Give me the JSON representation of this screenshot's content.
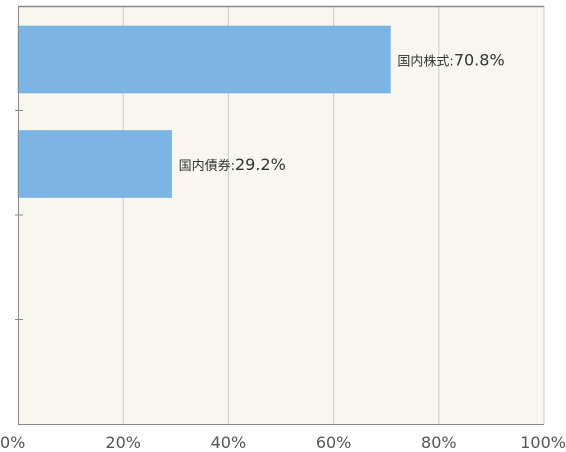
{
  "chart_data": {
    "type": "bar",
    "orientation": "horizontal",
    "categories": [
      "国内株式",
      "国内債券"
    ],
    "values": [
      70.8,
      29.2
    ],
    "label_separator": ":",
    "value_suffix": "%",
    "xlim": [
      0,
      100
    ],
    "xticks": [
      0,
      20,
      40,
      60,
      80,
      100
    ],
    "xtick_labels": [
      "0%",
      "20%",
      "40%",
      "60%",
      "80%",
      "100%"
    ],
    "grid": true,
    "legend": "none",
    "colors": {
      "bar": "#7db4e6",
      "bar_edge": "#6aa3d8",
      "plot_bg": "#f7f6ef",
      "grid": "#c9c9c9",
      "axis": "#8a8a8a"
    }
  }
}
